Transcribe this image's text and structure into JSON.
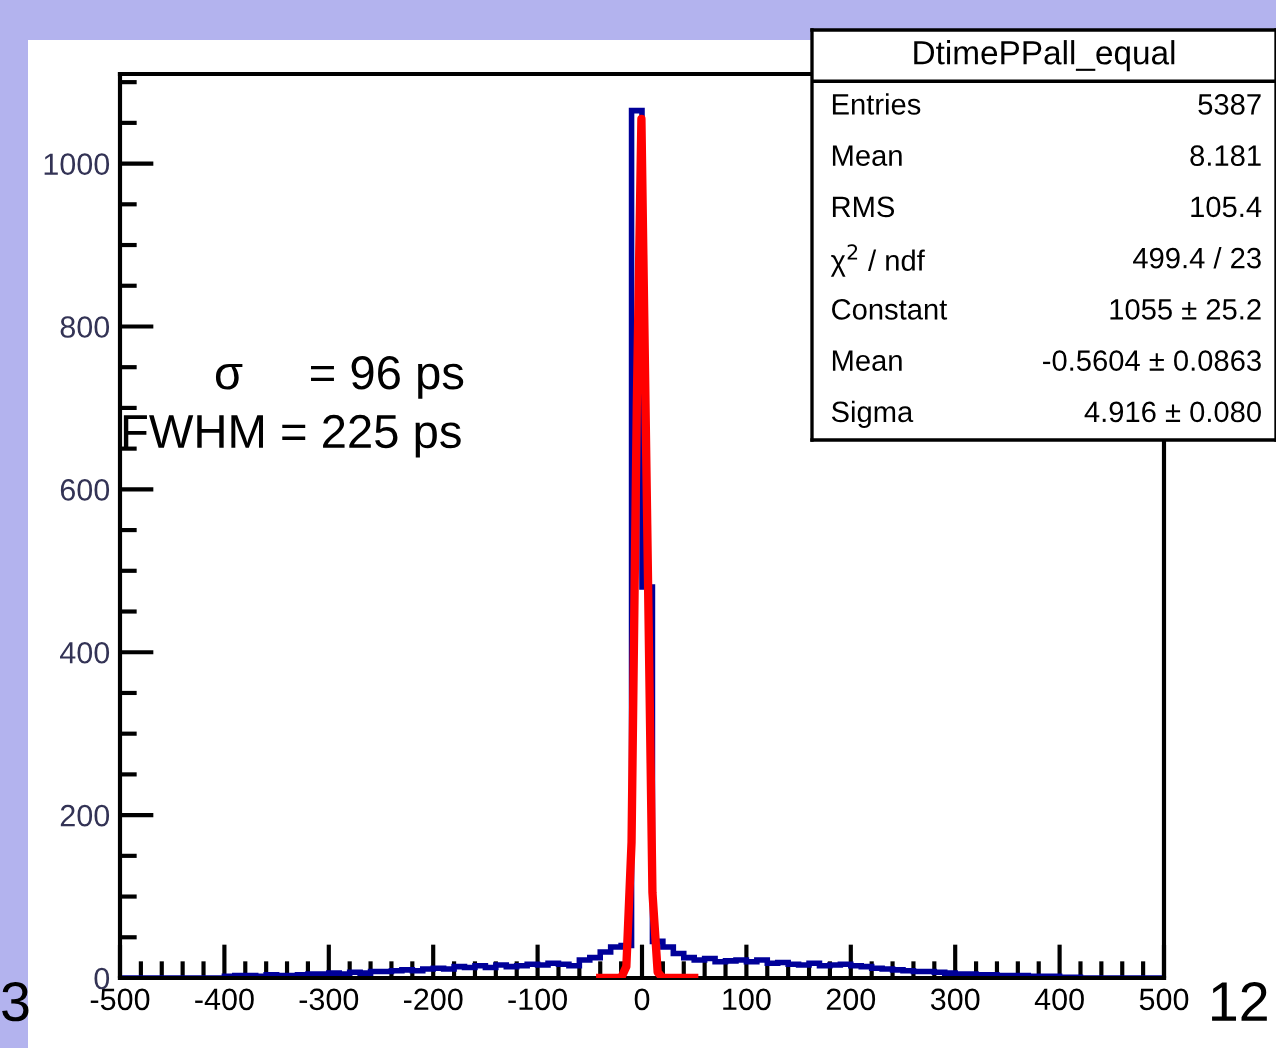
{
  "chart_data": {
    "type": "histogram",
    "bins": [
      -500,
      -490,
      -480,
      -470,
      -460,
      -450,
      -440,
      -430,
      -420,
      -410,
      -400,
      -390,
      -380,
      -370,
      -360,
      -350,
      -340,
      -330,
      -320,
      -310,
      -300,
      -290,
      -280,
      -270,
      -260,
      -250,
      -240,
      -230,
      -220,
      -210,
      -200,
      -190,
      -180,
      -170,
      -160,
      -150,
      -140,
      -130,
      -120,
      -110,
      -100,
      -90,
      -80,
      -70,
      -60,
      -50,
      -40,
      -30,
      -20,
      -10,
      0,
      10,
      20,
      30,
      40,
      50,
      60,
      70,
      80,
      90,
      100,
      110,
      120,
      130,
      140,
      150,
      160,
      170,
      180,
      190,
      200,
      210,
      220,
      230,
      240,
      250,
      260,
      270,
      280,
      290,
      300,
      310,
      320,
      330,
      340,
      350,
      360,
      370,
      380,
      390,
      400,
      410,
      420,
      430,
      440,
      450,
      460,
      470,
      480,
      490,
      500
    ],
    "series": [
      {
        "color": "#000099",
        "values": [
          0,
          0,
          0,
          0,
          0,
          0,
          0,
          0,
          0,
          0,
          2,
          3,
          3,
          2,
          4,
          3,
          3,
          4,
          5,
          5,
          6,
          5,
          7,
          6,
          8,
          8,
          9,
          10,
          9,
          11,
          12,
          11,
          14,
          13,
          15,
          13,
          16,
          14,
          15,
          17,
          16,
          18,
          17,
          15,
          22,
          25,
          32,
          38,
          40,
          1065,
          480,
          45,
          38,
          30,
          25,
          22,
          24,
          20,
          21,
          22,
          20,
          22,
          18,
          19,
          17,
          16,
          18,
          15,
          16,
          17,
          15,
          14,
          12,
          11,
          10,
          9,
          8,
          8,
          7,
          6,
          5,
          5,
          4,
          4,
          3,
          3,
          3,
          2,
          2,
          2,
          1,
          1,
          0,
          0,
          0,
          0,
          0,
          0,
          0,
          0
        ]
      },
      {
        "type": "line",
        "color": "#ff0000",
        "x": [
          -40,
          -20,
          -15,
          -10,
          -5,
          -0.56,
          5,
          10,
          15,
          20,
          50
        ],
        "values": [
          0,
          0,
          14,
          167,
          701,
          1055,
          557,
          105,
          7,
          0,
          0
        ]
      }
    ],
    "xlim": [
      -500,
      500
    ],
    "ylim": [
      0,
      1110
    ],
    "xticks": [
      -500,
      -400,
      -300,
      -200,
      -100,
      0,
      100,
      200,
      300,
      400,
      500
    ],
    "yticks": [
      0,
      200,
      400,
      600,
      800,
      1000
    ],
    "grid": false,
    "annotations": [
      "DtimePPall_equal",
      "Entries",
      "5387",
      "Mean",
      "8.181",
      "RMS",
      "105.4",
      "χ$^{2}$ / ndf",
      "499.4 / 23",
      "Constant",
      "1055 ± 25.2",
      "Mean",
      "-0.5604 ± 0.0863",
      "Sigma",
      "4.916 ± 0.080",
      "σ     = 96 ps",
      "FWHM = 225 ps",
      "3",
      "12"
    ]
  }
}
